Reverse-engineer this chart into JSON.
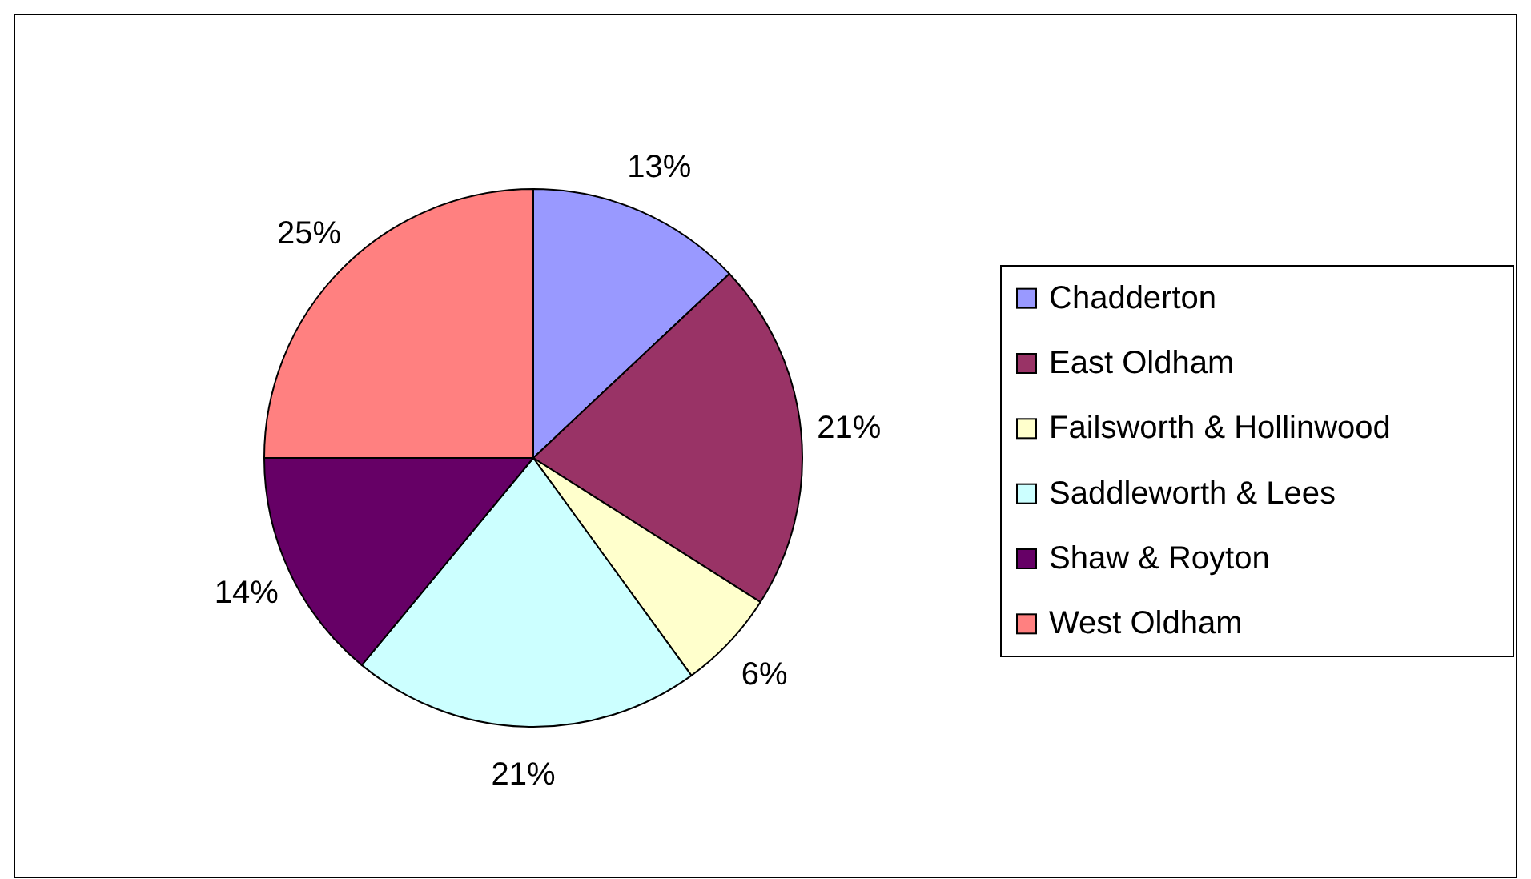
{
  "chart_data": {
    "type": "pie",
    "categories": [
      "Chadderton",
      "East Oldham",
      "Failsworth & Hollinwood",
      "Saddleworth & Lees",
      "Shaw & Royton",
      "West Oldham"
    ],
    "values": [
      13,
      21,
      6,
      21,
      14,
      25
    ],
    "value_labels": [
      "13%",
      "21%",
      "6%",
      "21%",
      "14%",
      "25%"
    ],
    "colors": [
      "#9999ff",
      "#993366",
      "#ffffcc",
      "#ccffff",
      "#660066",
      "#ff8080"
    ],
    "legend": "right"
  }
}
